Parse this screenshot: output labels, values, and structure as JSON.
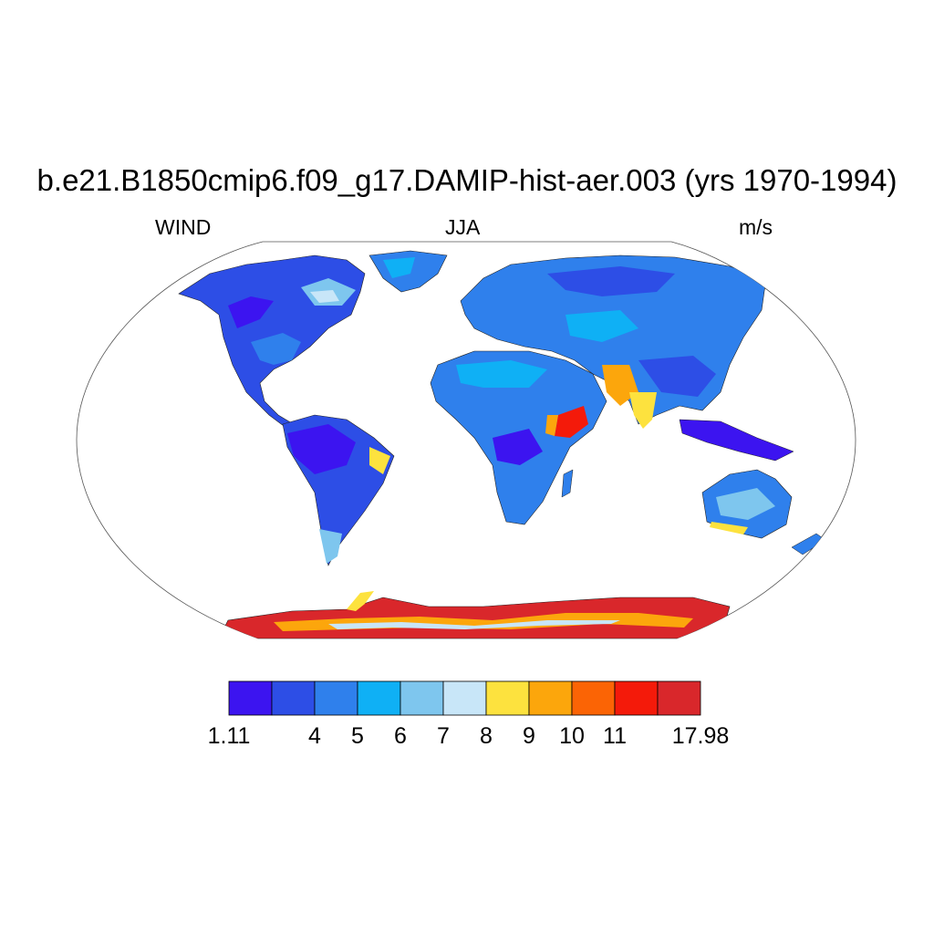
{
  "title": "b.e21.B1850cmip6.f09_g17.DAMIP-hist-aer.003 (yrs 1970-1994)",
  "subtitle_left": "WIND",
  "subtitle_center": "JJA",
  "subtitle_right": "m/s",
  "colorbar": {
    "colors": [
      "#3c14f0",
      "#2d4ee6",
      "#2f80ec",
      "#0fb0f5",
      "#7ec6ee",
      "#c8e6f8",
      "#fde23e",
      "#fca60c",
      "#fb6405",
      "#f41a0a",
      "#d9272b"
    ],
    "labels": [
      "1.11",
      "4",
      "5",
      "6",
      "7",
      "8",
      "9",
      "10",
      "11",
      "17.98"
    ]
  },
  "map": {
    "projection": "Robinson",
    "ocean_color": "#ffffff",
    "coastline_color": "#000000"
  }
}
